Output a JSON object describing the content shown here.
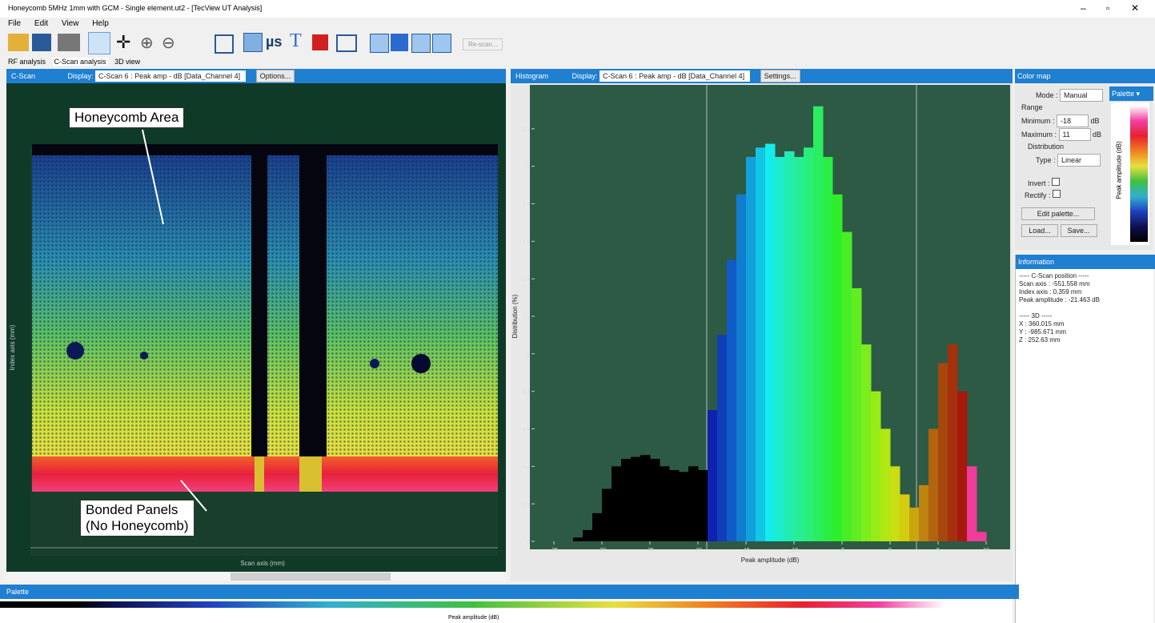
{
  "window": {
    "title": "Honeycomb 5MHz 1mm with GCM - Single element.ut2 - [TecView UT Analysis]"
  },
  "menu": [
    "File",
    "Edit",
    "View",
    "Help"
  ],
  "toolbar": {
    "units": "µs",
    "rescan": "Re-scan..."
  },
  "tabs": [
    "RF analysis",
    "C-Scan analysis",
    "3D view"
  ],
  "cscan_panel": {
    "view": "C-Scan",
    "display_label": "Display:",
    "display": "C-Scan 6 : Peak amp - dB [Data_Channel 4]",
    "options": "Options...",
    "annotations": [
      "Honeycomb Area",
      "Bonded Panels\n(No Honeycomb)"
    ],
    "x_label": "Scan axis (mm)",
    "y_label": "Index axis (mm)"
  },
  "histogram_panel": {
    "view": "Histogram",
    "display_label": "Display:",
    "display": "C-Scan 6 : Peak amp - dB [Data_Channel 4]",
    "settings": "Settings..."
  },
  "chart_data": {
    "type": "histogram",
    "x_label": "Peak amplitude (dB)",
    "y_label": "Distribution (%)",
    "bins": [
      -33,
      -32,
      -31,
      -30,
      -29,
      -28,
      -27,
      -26,
      -25,
      -24,
      -23,
      -22,
      -21,
      -20,
      -19,
      -18,
      -17,
      -16,
      -15,
      -14,
      -13,
      -12,
      -11,
      -10,
      -9,
      -8,
      -7,
      -6,
      -5,
      -4,
      -3,
      -2,
      -1,
      0,
      1,
      2,
      3,
      4,
      5,
      6,
      7,
      8,
      9,
      10
    ],
    "values": [
      0.02,
      0.06,
      0.15,
      0.28,
      0.4,
      0.44,
      0.45,
      0.46,
      0.44,
      0.4,
      0.38,
      0.37,
      0.4,
      0.38,
      0.7,
      1.1,
      1.5,
      1.85,
      2.05,
      2.1,
      2.12,
      2.05,
      2.08,
      2.05,
      2.1,
      2.32,
      2.05,
      1.85,
      1.65,
      1.35,
      1.05,
      0.8,
      0.6,
      0.4,
      0.25,
      0.18,
      0.3,
      0.6,
      0.95,
      1.05,
      0.8,
      0.4,
      0.05
    ],
    "xlim": [
      -37,
      12
    ],
    "ylim": [
      0,
      2.4
    ],
    "xticks": [
      -35,
      -30,
      -25,
      -20,
      -15,
      -10,
      -5,
      0,
      5,
      10
    ],
    "yticks": [
      0,
      0.2,
      0.4,
      0.6,
      0.8,
      1,
      1.2,
      1.4,
      1.6,
      1.8,
      2,
      2.2
    ]
  },
  "color_map": {
    "title": "Color map",
    "palette_tab": "Palette",
    "mode_label": "Mode :",
    "mode": "Manual",
    "range": "Range",
    "min_label": "Minimum :",
    "min": "-18",
    "max_label": "Maximum :",
    "max": "11",
    "unit": "dB",
    "distribution": "Distribution",
    "type_label": "Type :",
    "type": "Linear",
    "invert": "Invert :",
    "rectify": "Rectify :",
    "edit": "Edit palette...",
    "load": "Load...",
    "save": "Save...",
    "axis": "Peak amplitude (dB)"
  },
  "information": {
    "title": "Information",
    "lines": [
      "----- C-Scan position -----",
      "Scan axis : -551.558 mm",
      "Index axis : 0.359 mm",
      "Peak amplitude : -21.463 dB",
      "",
      "----- 3D -----",
      "X : 360.015 mm",
      "Y : -985.671 mm",
      "Z : 252.63 mm"
    ]
  },
  "palette_bar": {
    "title": "Palette",
    "axis": "Peak amplitude (dB)"
  }
}
